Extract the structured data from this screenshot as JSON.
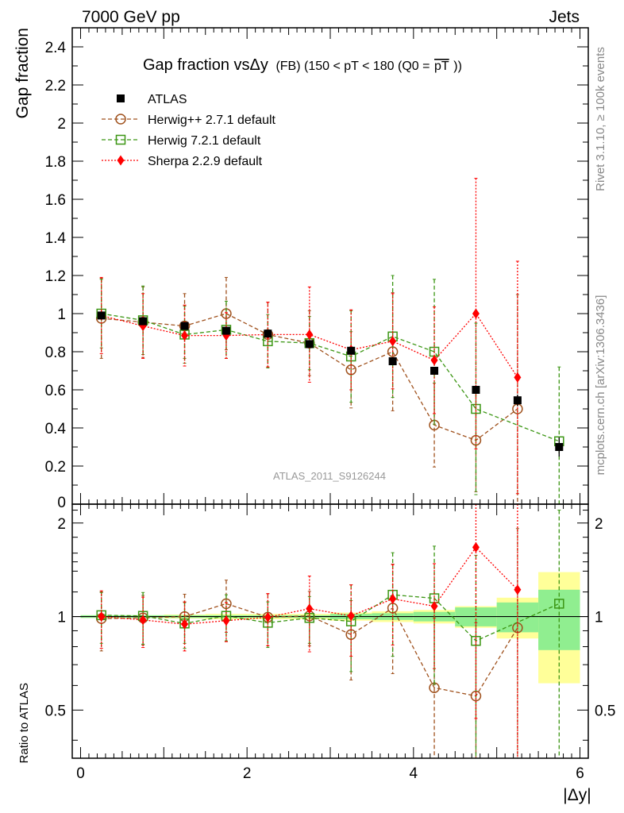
{
  "header": {
    "left": "7000 GeV pp",
    "right": "Jets",
    "side_rivet": "Rivet 3.1.10, ≥ 100k events",
    "side_mcplots": "mcplots.cern.ch [arXiv:1306.3436]",
    "analysis_id": "ATLAS_2011_S9126244"
  },
  "colors": {
    "atlas": "#000000",
    "herwigpp": "#a0521e",
    "herwig7": "#3c9614",
    "sherpa": "#ff0000",
    "band_inner": "#90ee90",
    "band_outer": "#ffff99"
  },
  "chart_data": [
    {
      "type": "scatter",
      "title": "Gap fraction vsΔy",
      "title_detail": "(FB) (150 < pT < 180 (Q0 =",
      "title_pt": "pT",
      "title_end": "))",
      "ylabel": "Gap fraction",
      "xlim": [
        -0.1,
        6.1
      ],
      "ylim": [
        0,
        2.5
      ],
      "yticks": [
        "0.2",
        "0.4",
        "0.6",
        "0.8",
        "1",
        "1.2",
        "1.4",
        "1.6",
        "1.8",
        "2",
        "2.2",
        "2.4"
      ],
      "y_zero_label": "0",
      "x": [
        0.25,
        0.75,
        1.25,
        1.75,
        2.25,
        2.75,
        3.25,
        3.75,
        4.25,
        4.75,
        5.25,
        5.75
      ],
      "series": [
        {
          "name": "ATLAS",
          "key": "atlas",
          "values": [
            0.99,
            0.96,
            0.935,
            0.91,
            0.895,
            0.84,
            0.805,
            0.75,
            0.7,
            0.6,
            0.545,
            0.3
          ],
          "errors": [
            0.01,
            0.01,
            0.01,
            0.01,
            0.01,
            0.01,
            0.02,
            0.02,
            0.02,
            0.02,
            0.03,
            0.05
          ]
        },
        {
          "name": "Herwig++ 2.7.1 default",
          "key": "herwigpp",
          "values": [
            0.975,
            0.955,
            0.935,
            1.0,
            0.89,
            0.845,
            0.705,
            0.8,
            0.415,
            0.335,
            0.5,
            null
          ],
          "errors": [
            0.21,
            0.185,
            0.17,
            0.19,
            0.17,
            0.17,
            0.2,
            0.31,
            0.22,
            0.27,
            0.6,
            null
          ]
        },
        {
          "name": "Herwig 7.2.1 default",
          "key": "herwig7",
          "values": [
            1.0,
            0.965,
            0.89,
            0.915,
            0.855,
            0.845,
            0.775,
            0.88,
            0.8,
            0.5,
            null,
            0.33
          ],
          "errors": [
            0.18,
            0.18,
            0.15,
            0.15,
            0.14,
            0.14,
            0.24,
            0.32,
            0.38,
            0.45,
            null,
            0.39
          ]
        },
        {
          "name": "Sherpa 2.2.9 default",
          "key": "sherpa",
          "values": [
            0.99,
            0.935,
            0.885,
            0.885,
            0.89,
            0.89,
            0.81,
            0.855,
            0.755,
            1.0,
            0.665,
            null
          ],
          "errors": [
            0.2,
            0.17,
            0.16,
            0.12,
            0.17,
            0.25,
            0.21,
            0.25,
            0.28,
            0.71,
            0.61,
            null
          ]
        }
      ]
    },
    {
      "type": "scatter",
      "ylabel": "Ratio to ATLAS",
      "xlabel": "|Δy|",
      "xlim": [
        -0.1,
        6.1
      ],
      "ylim": [
        0.35,
        2.3
      ],
      "yticks_major": [
        "0.5",
        "1",
        "2"
      ],
      "xticks": [
        "0",
        "2",
        "4",
        "6"
      ],
      "x": [
        0.25,
        0.75,
        1.25,
        1.75,
        2.25,
        2.75,
        3.25,
        3.75,
        4.25,
        4.75,
        5.25,
        5.75
      ],
      "band_inner": [
        0.01,
        0.01,
        0.01,
        0.01,
        0.01,
        0.01,
        0.02,
        0.025,
        0.035,
        0.07,
        0.11,
        0.22
      ],
      "band_outer": [
        0.01,
        0.01,
        0.015,
        0.02,
        0.02,
        0.02,
        0.03,
        0.04,
        0.05,
        0.08,
        0.15,
        0.39
      ],
      "series": [
        {
          "name": "Herwig++ 2.7.1 default",
          "key": "herwigpp",
          "values": [
            0.985,
            0.99,
            1.0,
            1.1,
            0.995,
            1.005,
            0.875,
            1.065,
            0.59,
            0.555,
            0.92,
            null
          ],
          "errors": [
            0.21,
            0.18,
            0.18,
            0.21,
            0.19,
            0.2,
            0.25,
            0.41,
            0.4,
            0.4,
            1.0,
            null
          ]
        },
        {
          "name": "Herwig 7.2.1 default",
          "key": "herwig7",
          "values": [
            1.01,
            1.005,
            0.95,
            1.005,
            0.955,
            0.99,
            0.965,
            1.175,
            1.145,
            0.835,
            null,
            1.1
          ],
          "errors": [
            0.19,
            0.19,
            0.16,
            0.17,
            0.16,
            0.17,
            0.3,
            0.43,
            0.54,
            0.74,
            null,
            1.1
          ]
        },
        {
          "name": "Sherpa 2.2.9 default",
          "key": "sherpa",
          "values": [
            1.0,
            0.975,
            0.945,
            0.97,
            0.995,
            1.06,
            1.005,
            1.14,
            1.08,
            1.67,
            1.22,
            null
          ],
          "errors": [
            0.21,
            0.18,
            0.17,
            0.14,
            0.19,
            0.29,
            0.26,
            0.33,
            0.4,
            1.2,
            1.1,
            null
          ]
        }
      ]
    }
  ]
}
